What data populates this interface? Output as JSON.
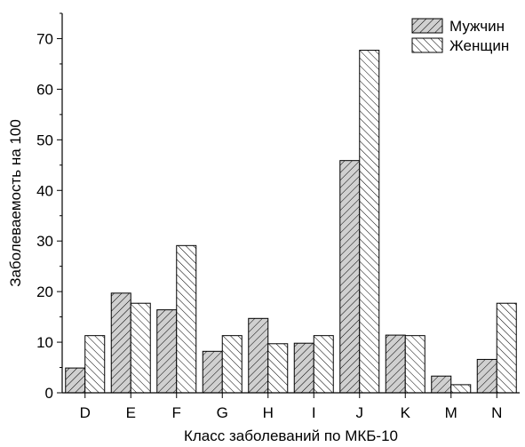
{
  "chart_data": {
    "type": "bar",
    "categories": [
      "D",
      "E",
      "F",
      "G",
      "H",
      "I",
      "J",
      "K",
      "M",
      "N"
    ],
    "series": [
      {
        "name": "Мужчин",
        "values": [
          4.9,
          19.7,
          16.4,
          8.2,
          14.7,
          9.8,
          45.9,
          11.4,
          3.3,
          6.6
        ],
        "fill": "#d0d0d0",
        "hatch": "forward"
      },
      {
        "name": "Женщин",
        "values": [
          11.3,
          17.7,
          29.1,
          11.3,
          9.7,
          11.3,
          67.7,
          11.3,
          1.6,
          17.7
        ],
        "fill": "#ffffff",
        "hatch": "backward"
      }
    ],
    "title": "",
    "xlabel": "Класс заболеваний по МКБ-10",
    "ylabel": "Заболеваемость на 100",
    "ylim": [
      0,
      75
    ],
    "yticks": [
      0,
      10,
      20,
      30,
      40,
      50,
      60,
      70
    ],
    "grid": false,
    "legend_position": "top-right"
  }
}
